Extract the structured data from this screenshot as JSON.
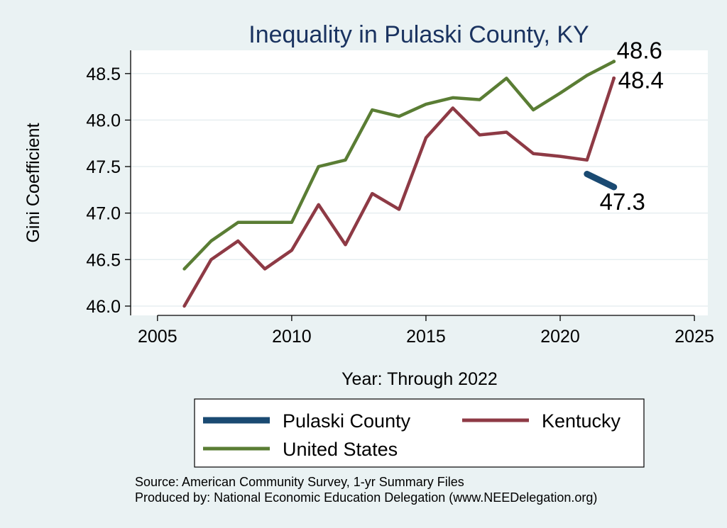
{
  "chart_data": {
    "type": "line",
    "title": "Inequality in Pulaski County, KY",
    "xlabel": "Year: Through 2022",
    "ylabel": "Gini Coefficient",
    "xlim": [
      2004,
      2025.5
    ],
    "ylim": [
      45.9,
      48.75
    ],
    "xticks": [
      2005,
      2010,
      2015,
      2020,
      2025
    ],
    "yticks": [
      46.0,
      46.5,
      47.0,
      47.5,
      48.0,
      48.5
    ],
    "ytick_labels": [
      "46.0",
      "46.5",
      "47.0",
      "47.5",
      "48.0",
      "48.5"
    ],
    "grid": true,
    "legend_position": "bottom",
    "series": [
      {
        "name": "Pulaski County",
        "color": "#1a4a72",
        "width": 9,
        "x": [
          2021,
          2022
        ],
        "values": [
          47.42,
          47.28
        ],
        "end_label": "47.3"
      },
      {
        "name": "Kentucky",
        "color": "#8e3a45",
        "width": 4.5,
        "x": [
          2006,
          2007,
          2008,
          2009,
          2010,
          2011,
          2012,
          2013,
          2014,
          2015,
          2016,
          2017,
          2018,
          2019,
          2020,
          2021,
          2022
        ],
        "values": [
          46.0,
          46.5,
          46.7,
          46.4,
          46.6,
          47.09,
          46.66,
          47.21,
          47.04,
          47.81,
          48.13,
          47.84,
          47.87,
          47.64,
          47.61,
          47.57,
          48.45
        ],
        "end_label": "48.4"
      },
      {
        "name": "United States",
        "color": "#5a7d34",
        "width": 4.5,
        "x": [
          2006,
          2007,
          2008,
          2009,
          2010,
          2011,
          2012,
          2013,
          2014,
          2015,
          2016,
          2017,
          2018,
          2019,
          2020,
          2021,
          2022
        ],
        "values": [
          46.4,
          46.7,
          46.9,
          46.9,
          46.9,
          47.5,
          47.57,
          48.11,
          48.04,
          48.17,
          48.24,
          48.22,
          48.45,
          48.11,
          48.29,
          48.48,
          48.63
        ],
        "end_label": "48.6"
      }
    ],
    "source_lines": [
      "Source: American Community Survey, 1-yr Summary Files",
      "Produced by: National Economic Education Delegation (www.NEEDelegation.org)"
    ]
  }
}
